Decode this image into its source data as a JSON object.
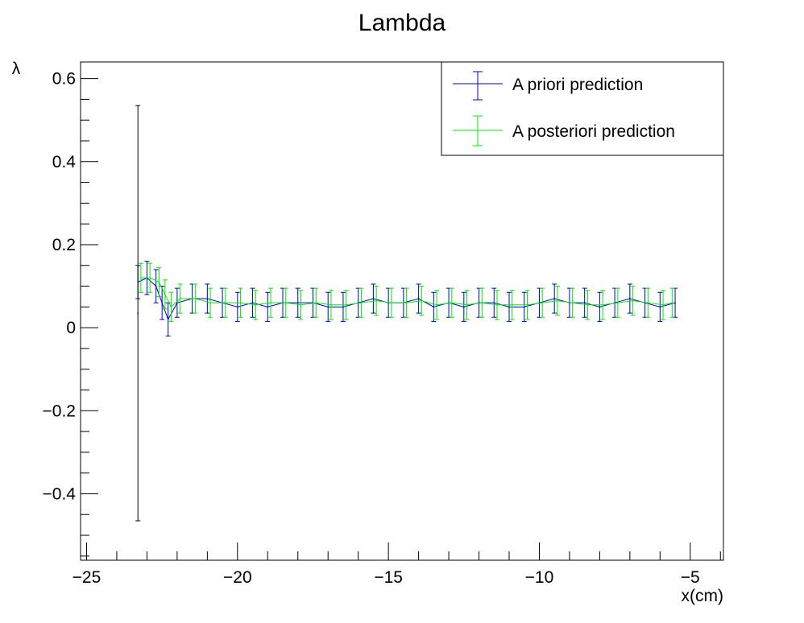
{
  "chart_data": {
    "type": "scatter",
    "title": "Lambda",
    "xlabel": "x(cm)",
    "ylabel": "λ",
    "xlim": [
      -25.2,
      -3.9
    ],
    "ylim": [
      -0.56,
      0.64
    ],
    "xticks": [
      -25,
      -20,
      -15,
      -10,
      -5
    ],
    "xtick_labels": [
      "−25",
      "−20",
      "−15",
      "−10",
      "−5"
    ],
    "yticks": [
      -0.4,
      -0.2,
      0,
      0.2,
      0.4,
      0.6
    ],
    "ytick_labels": [
      "−0.4",
      "−0.2",
      "0",
      "0.2",
      "0.4",
      "0.6"
    ],
    "legend_position": "top-right",
    "grid": false,
    "series": [
      {
        "name": "A priori prediction",
        "color": "#0000cc",
        "x": [
          -23.3,
          -23.0,
          -22.7,
          -22.5,
          -22.3,
          -22.0,
          -21.5,
          -21.0,
          -20.5,
          -20.0,
          -19.5,
          -19.0,
          -18.5,
          -18.0,
          -17.5,
          -17.0,
          -16.5,
          -16.0,
          -15.5,
          -15.0,
          -14.5,
          -14.0,
          -13.5,
          -13.0,
          -12.5,
          -12.0,
          -11.5,
          -11.0,
          -10.5,
          -10.0,
          -9.5,
          -9.0,
          -8.5,
          -8.0,
          -7.5,
          -7.0,
          -6.5,
          -6.0,
          -5.5
        ],
        "y": [
          0.11,
          0.12,
          0.1,
          0.06,
          0.02,
          0.06,
          0.07,
          0.07,
          0.06,
          0.05,
          0.06,
          0.05,
          0.06,
          0.06,
          0.06,
          0.05,
          0.05,
          0.06,
          0.07,
          0.06,
          0.06,
          0.07,
          0.05,
          0.06,
          0.05,
          0.06,
          0.06,
          0.05,
          0.05,
          0.06,
          0.07,
          0.06,
          0.06,
          0.05,
          0.06,
          0.07,
          0.06,
          0.05,
          0.06
        ],
        "err": [
          0.04,
          0.04,
          0.04,
          0.04,
          0.04,
          0.035,
          0.035,
          0.035,
          0.035,
          0.035,
          0.035,
          0.035,
          0.035,
          0.035,
          0.035,
          0.035,
          0.035,
          0.035,
          0.035,
          0.035,
          0.035,
          0.035,
          0.035,
          0.035,
          0.035,
          0.035,
          0.035,
          0.035,
          0.035,
          0.035,
          0.035,
          0.035,
          0.035,
          0.035,
          0.035,
          0.035,
          0.035,
          0.035,
          0.035
        ]
      },
      {
        "name": "A posteriori prediction",
        "color": "#00ee00",
        "x": [
          -23.2,
          -22.9,
          -22.6,
          -22.4,
          -22.2,
          -21.9,
          -21.4,
          -20.9,
          -20.4,
          -19.9,
          -19.4,
          -18.9,
          -18.4,
          -17.9,
          -17.4,
          -16.9,
          -16.4,
          -15.9,
          -15.4,
          -14.9,
          -14.4,
          -13.9,
          -13.4,
          -12.9,
          -12.4,
          -11.9,
          -11.4,
          -10.9,
          -10.4,
          -9.9,
          -9.4,
          -8.9,
          -8.4,
          -7.9,
          -7.4,
          -6.9,
          -6.4,
          -5.9,
          -5.6
        ],
        "y": [
          0.12,
          0.12,
          0.11,
          0.08,
          0.05,
          0.07,
          0.07,
          0.06,
          0.06,
          0.06,
          0.055,
          0.06,
          0.06,
          0.055,
          0.06,
          0.055,
          0.055,
          0.06,
          0.065,
          0.06,
          0.06,
          0.065,
          0.055,
          0.06,
          0.055,
          0.06,
          0.055,
          0.055,
          0.055,
          0.06,
          0.065,
          0.06,
          0.055,
          0.055,
          0.06,
          0.065,
          0.06,
          0.055,
          0.06
        ],
        "err": [
          0.035,
          0.035,
          0.035,
          0.035,
          0.035,
          0.035,
          0.035,
          0.035,
          0.035,
          0.035,
          0.035,
          0.035,
          0.035,
          0.035,
          0.035,
          0.035,
          0.035,
          0.035,
          0.035,
          0.035,
          0.035,
          0.035,
          0.035,
          0.035,
          0.035,
          0.035,
          0.035,
          0.035,
          0.035,
          0.035,
          0.035,
          0.035,
          0.035,
          0.035,
          0.035,
          0.035,
          0.035,
          0.035,
          0.035
        ]
      },
      {
        "color": "#000000",
        "x": [
          -23.3
        ],
        "y": [
          0.035
        ],
        "err": [
          0.5
        ]
      }
    ]
  }
}
